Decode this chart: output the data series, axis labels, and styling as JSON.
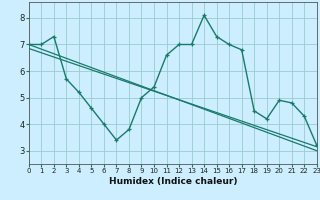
{
  "bg_color": "#cceeff",
  "grid_color": "#99cccc",
  "line_color": "#1a7a6a",
  "xlabel": "Humidex (Indice chaleur)",
  "xlim": [
    0,
    23
  ],
  "ylim": [
    2.5,
    8.6
  ],
  "yticks": [
    3,
    4,
    5,
    6,
    7,
    8
  ],
  "xticks": [
    0,
    1,
    2,
    3,
    4,
    5,
    6,
    7,
    8,
    9,
    10,
    11,
    12,
    13,
    14,
    15,
    16,
    17,
    18,
    19,
    20,
    21,
    22,
    23
  ],
  "line1_x": [
    0,
    23
  ],
  "line1_y": [
    7.0,
    3.0
  ],
  "line2_x": [
    0,
    23
  ],
  "line2_y": [
    6.85,
    3.15
  ],
  "zigzag_x": [
    0,
    1,
    2,
    3,
    4,
    5,
    6,
    7,
    8,
    9,
    10,
    11,
    12,
    13,
    14,
    15,
    16,
    17,
    18,
    19,
    20,
    21,
    22,
    23
  ],
  "zigzag_y": [
    7.0,
    7.0,
    7.3,
    5.7,
    5.2,
    4.6,
    4.0,
    3.4,
    3.8,
    5.0,
    5.4,
    6.6,
    7.0,
    7.0,
    8.1,
    7.3,
    7.0,
    6.8,
    4.5,
    4.2,
    4.9,
    4.8,
    4.3,
    3.2
  ]
}
